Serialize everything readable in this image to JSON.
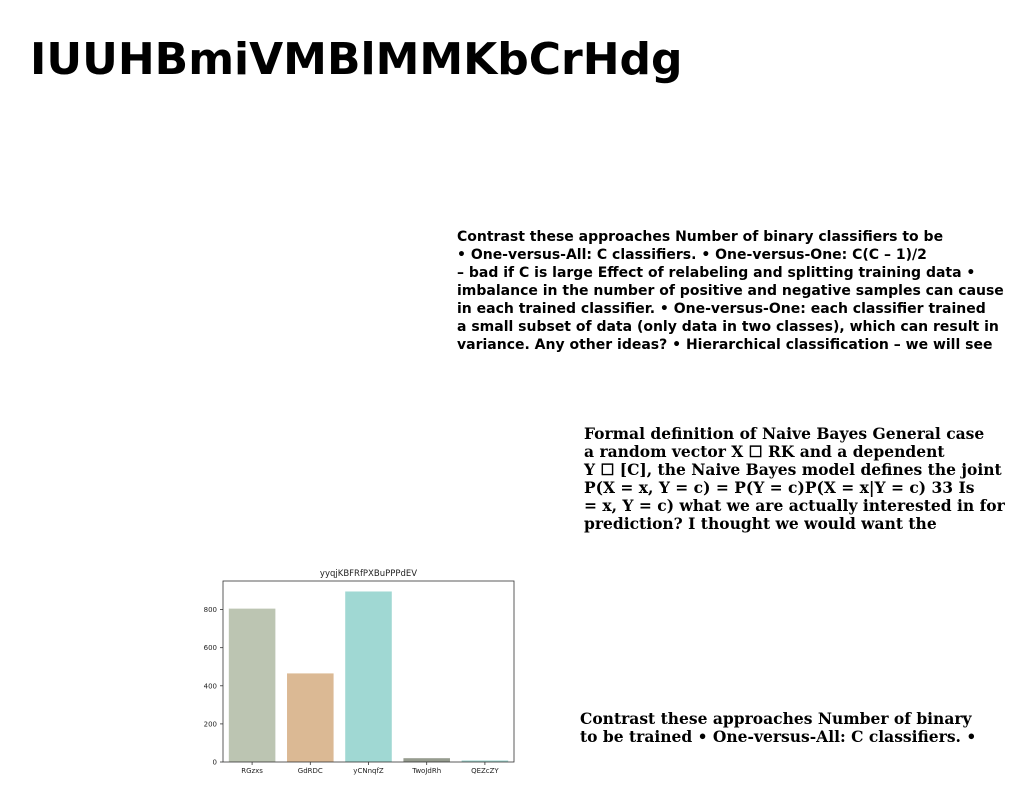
{
  "document": {
    "title": "IUUHBmiVMBlMMKbCrHdg",
    "block1_lines": [
      "Contrast these approaches Number of binary classifiers to be",
      "• One-versus-All: C classifiers. • One-versus-One: C(C – 1)/2",
      "– bad if C is large Effect of relabeling and splitting training data •",
      "imbalance in the number of positive and negative samples can cause",
      "in each trained classifier. • One-versus-One: each classifier trained",
      "a small subset of data (only data in two classes), which can result in",
      "variance. Any other ideas? • Hierarchical classification – we will see"
    ],
    "block2_lines": [
      "Formal definition of Naive Bayes General case",
      "a random vector X ☐ RK and a dependent",
      "Y ☐ [C], the Naive Bayes model defines the joint",
      "P(X = x, Y = c) = P(Y = c)P(X = x|Y = c) 33 Is",
      "= x, Y = c) what we are actually interested in for",
      "prediction? I thought we would want the"
    ],
    "block3_lines": [
      "Contrast these approaches Number of binary",
      "to be trained • One-versus-All: C classifiers. •"
    ]
  },
  "chart_data": {
    "type": "bar",
    "title": "yyqjKBFRfPXBuPPPdEV",
    "xlabel": "",
    "ylabel": "",
    "categories": [
      "RGzxs",
      "GdRDC",
      "yCNnqfZ",
      "TwoJdRh",
      "QEZcZY"
    ],
    "values": [
      805,
      465,
      895,
      20,
      8
    ],
    "colors": [
      "#bcc5b2",
      "#dbb994",
      "#a0d8d3",
      "#969c8f",
      "#9fd5cf"
    ],
    "ylim": [
      0,
      950
    ],
    "yticks": [
      0,
      200,
      400,
      600,
      800
    ],
    "grid": false
  }
}
